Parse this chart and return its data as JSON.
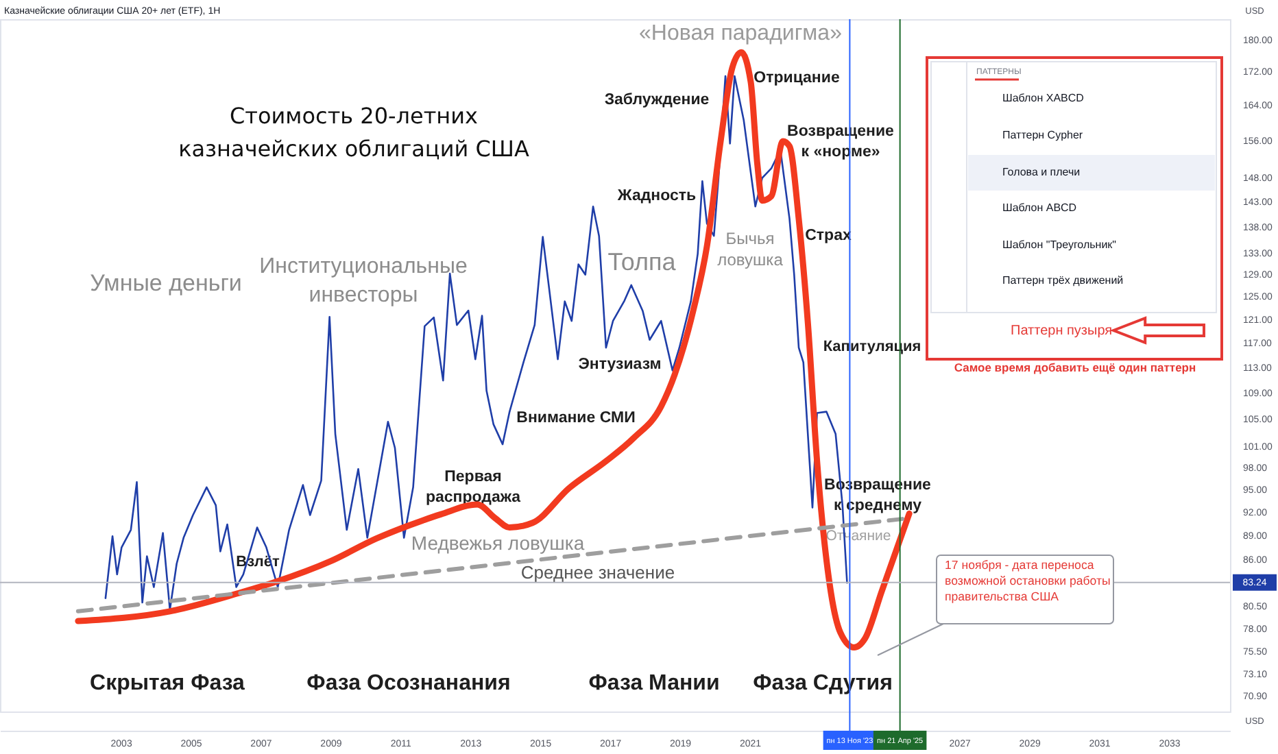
{
  "chart_data": {
    "type": "line",
    "title": "Казначейские облигации США 20+ лет (ETF), 1H",
    "subtitle": "Стоимость 20-летних казначейских облигаций США",
    "ylabel": "USD",
    "series": [
      {
        "color": "#1f3ea8",
        "x": [
          "2002-07-26",
          "2002-10-07",
          "2002-11-24",
          "2003-01-10",
          "2003-04-17",
          "2003-06-18",
          "2003-08-15",
          "2003-10-02",
          "2003-12-13",
          "2004-03-17",
          "2004-05-29",
          "2004-08-08",
          "2004-10-19",
          "2005-01-25",
          "2005-06-17",
          "2005-09-21",
          "2005-11-07",
          "2006-01-19",
          "2006-04-23",
          "2006-07-05",
          "2006-11-27",
          "2007-03-03",
          "2007-07-01",
          "2007-10-27",
          "2008-03-20",
          "2008-06-02",
          "2008-09-27",
          "2008-12-23",
          "2009-02-21",
          "2009-06-21",
          "2009-10-19",
          "2010-01-22",
          "2010-08-26",
          "2010-11-06",
          "2011-02-09",
          "2011-05-16",
          "2011-09-13",
          "2011-12-18",
          "2012-03-24",
          "2012-06-03",
          "2012-08-15",
          "2012-12-13",
          "2013-02-24",
          "2013-05-05",
          "2013-06-21",
          "2013-09-02",
          "2013-12-06",
          "2014-02-17",
          "2014-07-12",
          "2014-11-06",
          "2015-01-30",
          "2015-04-02",
          "2015-07-06",
          "2015-09-17",
          "2015-11-28",
          "2016-02-07",
          "2016-04-19",
          "2016-07-09",
          "2016-09-09",
          "2016-11-21",
          "2017-02-02",
          "2017-06-01",
          "2017-08-12",
          "2017-12-10",
          "2018-02-20",
          "2018-06-20",
          "2018-10-17",
          "2018-12-28",
          "2019-04-27",
          "2019-07-08",
          "2019-08-25",
          "2019-10-12",
          "2019-12-24",
          "2020-02-10",
          "2020-04-22",
          "2020-06-09",
          "2020-07-27",
          "2020-10-31",
          "2021-03-01",
          "2021-05-12",
          "2021-08-15",
          "2021-11-18",
          "2022-02-21",
          "2022-04-11",
          "2022-05-29",
          "2022-07-16",
          "2022-10-19",
          "2022-12-06",
          "2023-03-14",
          "2023-06-18",
          "2023-08-29",
          "2023-10-16"
        ],
        "values": [
          81.4,
          88.9,
          84.2,
          87.5,
          89.7,
          96.0,
          80.9,
          86.4,
          82.7,
          89.3,
          80.1,
          85.5,
          88.7,
          91.6,
          95.3,
          92.9,
          87.0,
          90.4,
          82.7,
          84.2,
          90.0,
          87.5,
          82.7,
          89.7,
          95.6,
          91.6,
          96.2,
          121.4,
          102.8,
          89.7,
          97.8,
          88.7,
          104.6,
          100.8,
          88.7,
          95.3,
          119.8,
          121.3,
          110.9,
          129.1,
          120.0,
          122.5,
          114.3,
          121.6,
          109.3,
          104.2,
          101.3,
          106.1,
          113.8,
          120.0,
          136.0,
          127.0,
          114.3,
          124.1,
          120.7,
          130.8,
          128.9,
          142.0,
          136.2,
          116.2,
          120.7,
          124.2,
          127.0,
          122.4,
          117.5,
          120.7,
          112.5,
          116.2,
          124.1,
          132.8,
          147.2,
          138.6,
          136.2,
          147.9,
          170.9,
          155.3,
          170.9,
          160.5,
          142.0,
          147.9,
          149.9,
          153.9,
          139.6,
          128.9,
          116.2,
          113.8,
          92.6,
          105.9,
          106.1,
          102.8,
          92.9,
          83.2
        ]
      },
      {
        "color": "#f23a1f",
        "x": [
          "2001-10-12",
          "2004-05-29",
          "2006-05-19",
          "2007-06-06",
          "2009-01-04",
          "2010-04-26",
          "2011-08-21",
          "2012-02-28",
          "2013-03-18",
          "2013-09-20",
          "2014-02-17",
          "2014-10-15",
          "2015-11-03",
          "2016-11-21",
          "2017-09-06",
          "2018-06-20",
          "2018-11-10",
          "2019-05-22",
          "2019-10-12",
          "2020-03-03",
          "2020-07-01",
          "2020-10-05",
          "2021-01-12",
          "2021-03-22",
          "2021-05-12",
          "2021-08-15",
          "2021-12-14",
          "2022-02-21",
          "2022-05-29",
          "2022-09-02",
          "2022-12-06",
          "2023-05-01",
          "2023-08-08",
          "2023-12-28",
          "2024-04-22",
          "2024-10-12",
          "2025-07-27"
        ],
        "values": [
          78.8,
          79.9,
          82.0,
          83.3,
          85.8,
          88.6,
          90.9,
          91.7,
          93.0,
          91.2,
          90.0,
          90.6,
          95.2,
          98.9,
          102.2,
          106.9,
          111.9,
          122.5,
          134.2,
          155.8,
          172.8,
          176.8,
          169.5,
          150.8,
          143.2,
          144.1,
          155.8,
          154.7,
          139.5,
          120.2,
          98.9,
          82.0,
          77.5,
          75.9,
          76.9,
          82.2,
          91.8
        ]
      },
      {
        "color": "#9e9e9e",
        "line_style": "dashed",
        "x": [
          "2001-10-12",
          "2025-05-15"
        ],
        "values": [
          79.9,
          91.1
        ]
      }
    ],
    "xlim": [
      "1999-07-19",
      "2034-10-01"
    ],
    "xticks": [
      "2003",
      "2005",
      "2007",
      "2009",
      "2011",
      "2013",
      "2015",
      "2017",
      "2019",
      "2021",
      "2027",
      "2029",
      "2031",
      "2033"
    ],
    "ylim": [
      69.3,
      185.3
    ],
    "yticks": [
      {
        "value": 180,
        "label": "180.00"
      },
      {
        "value": 172,
        "label": "172.00"
      },
      {
        "value": 164,
        "label": "164.00"
      },
      {
        "value": 156,
        "label": "156.00"
      },
      {
        "value": 148,
        "label": "148.00"
      },
      {
        "value": 143,
        "label": "143.00"
      },
      {
        "value": 138,
        "label": "138.00"
      },
      {
        "value": 133,
        "label": "133.00"
      },
      {
        "value": 129,
        "label": "129.00"
      },
      {
        "value": 125,
        "label": "125.00"
      },
      {
        "value": 121,
        "label": "121.00"
      },
      {
        "value": 117,
        "label": "117.00"
      },
      {
        "value": 113,
        "label": "113.00"
      },
      {
        "value": 109,
        "label": "109.00"
      },
      {
        "value": 105,
        "label": "105.00"
      },
      {
        "value": 101,
        "label": "101.00"
      },
      {
        "value": 98,
        "label": "98.00"
      },
      {
        "value": 95,
        "label": "95.00"
      },
      {
        "value": 92,
        "label": "92.00"
      },
      {
        "value": 89,
        "label": "89.00"
      },
      {
        "value": 86,
        "label": "86.00"
      },
      {
        "value": 80.5,
        "label": "80.50"
      },
      {
        "value": 78,
        "label": "78.00"
      },
      {
        "value": 75.5,
        "label": "75.50"
      },
      {
        "value": 73.1,
        "label": "73.10"
      },
      {
        "value": 70.9,
        "label": "70.90"
      }
    ],
    "log": true,
    "ref_lines": [
      {
        "axis": "x",
        "value": "2023-11-13",
        "label": "пн 13 Ноя '23",
        "color": "#2962ff"
      },
      {
        "axis": "x",
        "value": "2025-04-21",
        "label": "пн 21 Апр '25",
        "color": "#1e6b2c"
      },
      {
        "axis": "y",
        "value": 83.24,
        "label": "83.24",
        "color": "#b2b5be"
      }
    ],
    "annotations": [
      "«Новая парадигма»",
      "Заблуждение",
      "Отрицание",
      "Возвращение к «норме»",
      "Жадность",
      "Бычья ловушка",
      "Страх",
      "Толпа",
      "Энтузиазм",
      "Институциональные инвесторы",
      "Умные деньги",
      "Внимание СМИ",
      "Капитуляция",
      "Первая распродажа",
      "Взлёт",
      "Медвежья ловушка",
      "Среднее значение",
      "Возвращение к среднему",
      "Отчаяние",
      "Скрытая Фаза",
      "Фаза Осознанания",
      "Фаза Мании",
      "Фаза Сдутия",
      "17 ноября - дата переноса возможной остановки работы правительства США",
      "ПАТТЕРНЫ",
      "Шаблон XABCD",
      "Паттерн Cypher",
      "Голова и плечи",
      "Шаблон ABCD",
      "Шаблон \"Треугольник\"",
      "Паттерн трёх движений",
      "Паттерн пузыря",
      "Самое время добавить ещё один паттерн"
    ],
    "grid": false,
    "marker": "none",
    "line_style": "solid"
  }
}
